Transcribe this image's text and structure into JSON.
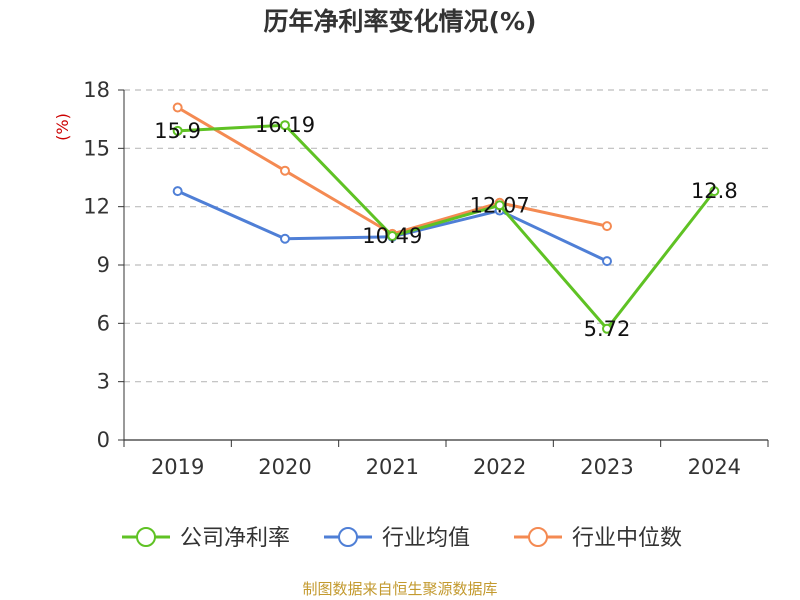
{
  "chart_data": {
    "type": "line",
    "title": "历年净利率变化情况(%)",
    "ylabel": "(%)",
    "xlabel": "",
    "categories": [
      "2019",
      "2020",
      "2021",
      "2022",
      "2023",
      "2024"
    ],
    "ylim": [
      0,
      18
    ],
    "yticks": [
      0,
      3,
      6,
      9,
      12,
      15,
      18
    ],
    "grid": true,
    "legend_position": "bottom",
    "series": [
      {
        "name": "公司净利率",
        "color": "#5fc224",
        "values": [
          15.9,
          16.19,
          10.49,
          12.07,
          5.72,
          12.8
        ],
        "labels": [
          "15.9",
          "16.19",
          "10.49",
          "12.07",
          "5.72",
          "12.8"
        ]
      },
      {
        "name": "行业均值",
        "color": "#4f7fd6",
        "values": [
          12.8,
          10.35,
          10.45,
          11.8,
          9.2,
          null
        ]
      },
      {
        "name": "行业中位数",
        "color": "#f48a52",
        "values": [
          17.1,
          13.85,
          10.6,
          12.2,
          11.0,
          null
        ]
      }
    ]
  },
  "source": "制图数据来自恒生聚源数据库"
}
